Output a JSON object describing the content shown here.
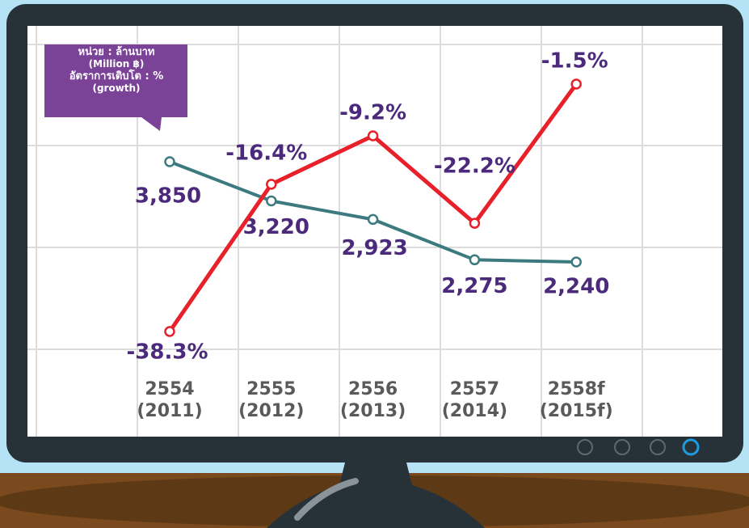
{
  "chart_data": {
    "type": "line",
    "legend": [
      "หน่วย : ล้านบาท",
      "(Million ฿)",
      "อัตราการเติบโต : %",
      "(growth)"
    ],
    "categories": [
      "2554 (2011)",
      "2555 (2012)",
      "2556 (2013)",
      "2557 (2014)",
      "2558f (2015f)"
    ],
    "series": [
      {
        "color": "#3d7a80",
        "values": [
          3850,
          3220,
          2923,
          2275,
          2240
        ],
        "value_labels": [
          "3,850",
          "3,220",
          "2,923",
          "2,275",
          "2,240"
        ]
      },
      {
        "color": "#e8202a",
        "values": [
          -38.3,
          -16.4,
          -9.2,
          -22.2,
          -1.5
        ],
        "value_labels": [
          "-38.3%",
          "-16.4%",
          "-9.2%",
          "-22.2%",
          "-1.5%"
        ]
      }
    ]
  }
}
